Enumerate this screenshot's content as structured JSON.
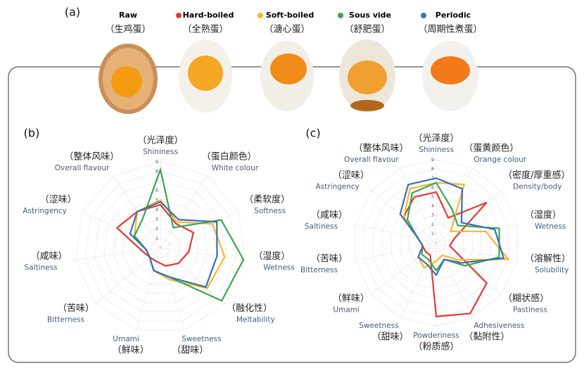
{
  "header": {
    "panel": "(a)",
    "raw_name": "Raw",
    "raw_zh": "（生鸡蛋）",
    "series_zh": [
      "（全熟蛋）",
      "（溏心蛋）",
      "（舒肥蛋）",
      "（周期性煮蛋）"
    ]
  },
  "chart_data": [
    {
      "type": "radar",
      "panel": "(b)",
      "categories": [
        "Shininess",
        "White colour",
        "Softness",
        "Wetness",
        "Meltability",
        "Sweetness",
        "Umami",
        "Bitterness",
        "Saltiness",
        "Astringency",
        "Overall flavour"
      ],
      "categories_zh": [
        "（光泽度）",
        "（蛋白颜色）",
        "（柔软度）",
        "（湿度）",
        "（融化性）",
        "（甜味）",
        "（鲜味）",
        "（苦味）",
        "（咸味）",
        "（涩味）",
        "（整体风味）"
      ],
      "rlim": [
        0,
        9
      ],
      "rticks": [
        1,
        2,
        3,
        4,
        5,
        6,
        7,
        8,
        9
      ],
      "grid": true,
      "series": [
        {
          "name": "Hard-boiled",
          "color": "#e53935",
          "values": [
            4.5,
            3,
            3.8,
            3,
            2.5,
            2,
            1.5,
            1.5,
            2,
            5,
            4.5
          ]
        },
        {
          "name": "Soft-boiled",
          "color": "#f5b82e",
          "values": [
            5,
            3.2,
            6,
            6.8,
            6.5,
            3.5,
            2.5,
            1.5,
            1.5,
            3,
            4.5
          ]
        },
        {
          "name": "Sous vide",
          "color": "#3aa655",
          "values": [
            8.2,
            2.5,
            7,
            8.8,
            8.5,
            3.2,
            2.5,
            1.5,
            1.5,
            3,
            3.5
          ]
        },
        {
          "name": "Periodic",
          "color": "#3d6fb6",
          "values": [
            4.8,
            3.5,
            6.5,
            6,
            6.3,
            3.2,
            2.5,
            1.5,
            1.5,
            3.5,
            4.5
          ]
        }
      ]
    },
    {
      "type": "radar",
      "panel": "(c)",
      "categories": [
        "Shininess",
        "Orange colour",
        "Density/body",
        "Wetness",
        "Solubility",
        "Pastiness",
        "Adhesiveness",
        "Powderiness",
        "Sweetness",
        "Umami",
        "Bitterness",
        "Saltiness",
        "Astringency",
        "Overall flavour"
      ],
      "categories_zh": [
        "（光泽度）",
        "（蛋黄颜色）",
        "（密度/厚重感）",
        "（湿度）",
        "（溶解性）",
        "（糊状感）",
        "（黏附性）",
        "（粉质感）",
        "（甜味）",
        "（鲜味）",
        "（苦味）",
        "（咸味）",
        "（涩味）",
        "（整体风味）"
      ],
      "rlim": [
        0,
        9
      ],
      "rticks": [
        1,
        2,
        3,
        4,
        5,
        6,
        7,
        8,
        9
      ],
      "grid": true,
      "series": [
        {
          "color": "#e53935",
          "values": [
            5.5,
            3,
            7,
            2,
            1.5,
            7,
            8.5,
            8,
            1.5,
            1.5,
            1.5,
            2,
            4.5,
            5.5
          ]
        },
        {
          "color": "#f5b82e",
          "values": [
            6.5,
            7,
            2,
            5.5,
            8,
            3,
            1.5,
            2,
            3,
            2.5,
            1.5,
            2,
            4.5,
            6.5
          ]
        },
        {
          "color": "#3aa655",
          "values": [
            6.5,
            4,
            3,
            7,
            7,
            4,
            2,
            3,
            2,
            2,
            1.5,
            2,
            4,
            6
          ]
        },
        {
          "color": "#3d6fb6",
          "values": [
            7,
            6.5,
            3.5,
            6.5,
            7.5,
            3.5,
            2,
            3.5,
            2.5,
            2.5,
            1.5,
            2,
            5,
            7
          ]
        }
      ]
    }
  ]
}
